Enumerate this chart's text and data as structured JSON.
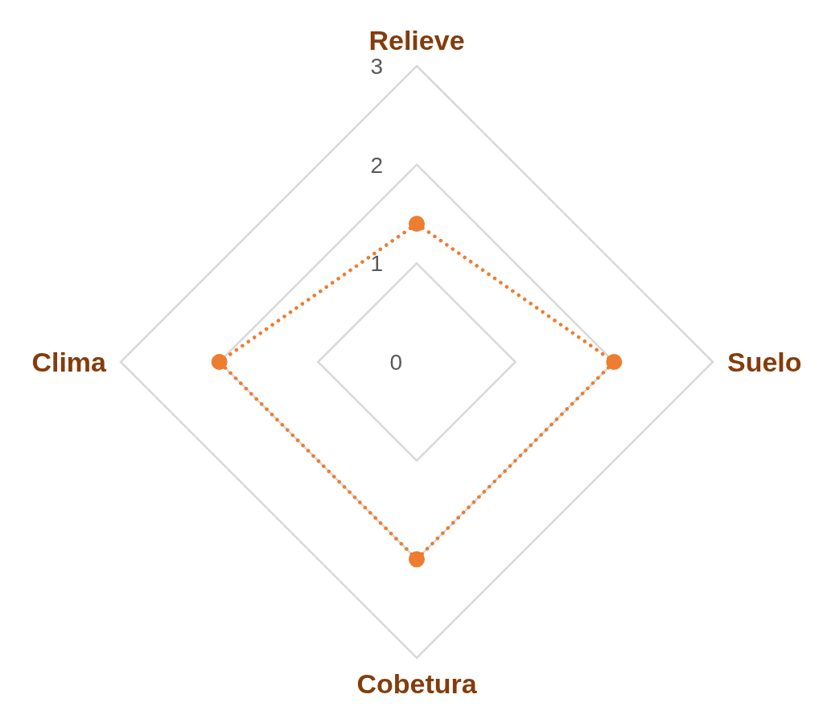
{
  "chart_data": {
    "type": "radar",
    "categories": [
      "Relieve",
      "Suelo",
      "Cobetura",
      "Clima"
    ],
    "series": [
      {
        "color": "#ed7d31",
        "values": [
          1.4,
          2,
          2,
          2
        ]
      }
    ],
    "ylim": [
      0,
      3
    ],
    "yticks": [
      0,
      1,
      2,
      3
    ],
    "grid": true,
    "marker": "circle",
    "line_style": "dotted"
  }
}
